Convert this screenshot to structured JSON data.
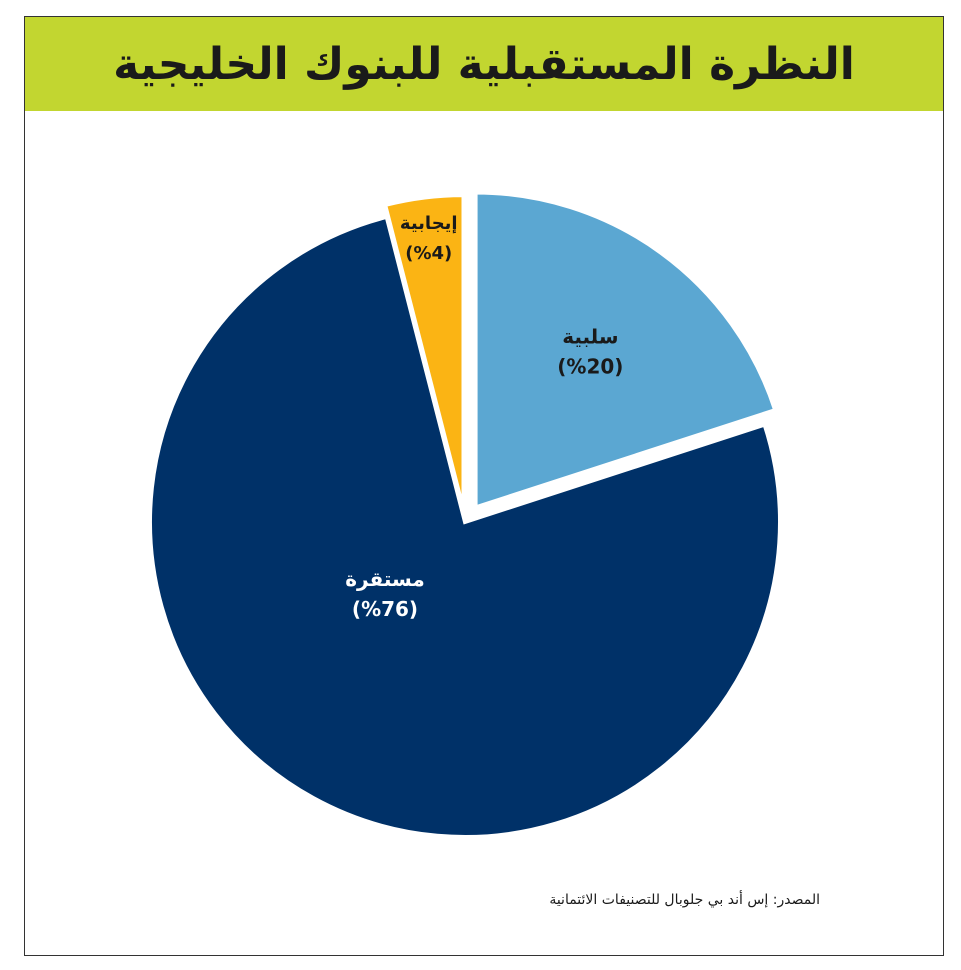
{
  "colors": {
    "title_bar": "#c2d630",
    "background": "#ffffff",
    "border": "#333333",
    "label_dark": "#1a1a1a",
    "label_light": "#ffffff"
  },
  "source": "المصدر: إس أند بي جلوبال للتصنيفات الائتمانية",
  "chart_data": {
    "type": "pie",
    "title": "النظرة المستقبلية للبنوك الخليجية",
    "slices": [
      {
        "label": "سلبية",
        "value_label": "(%20)",
        "value": 20,
        "color": "#5ba7d2",
        "label_color": "#1a1a1a"
      },
      {
        "label": "مستقرة",
        "value_label": "(%76)",
        "value": 76,
        "color": "#003168",
        "label_color": "#ffffff"
      },
      {
        "label": "إيجابية",
        "value_label": "(%4)",
        "value": 4,
        "color": "#fbb414",
        "label_color": "#1a1a1a"
      }
    ],
    "legend": "none"
  }
}
